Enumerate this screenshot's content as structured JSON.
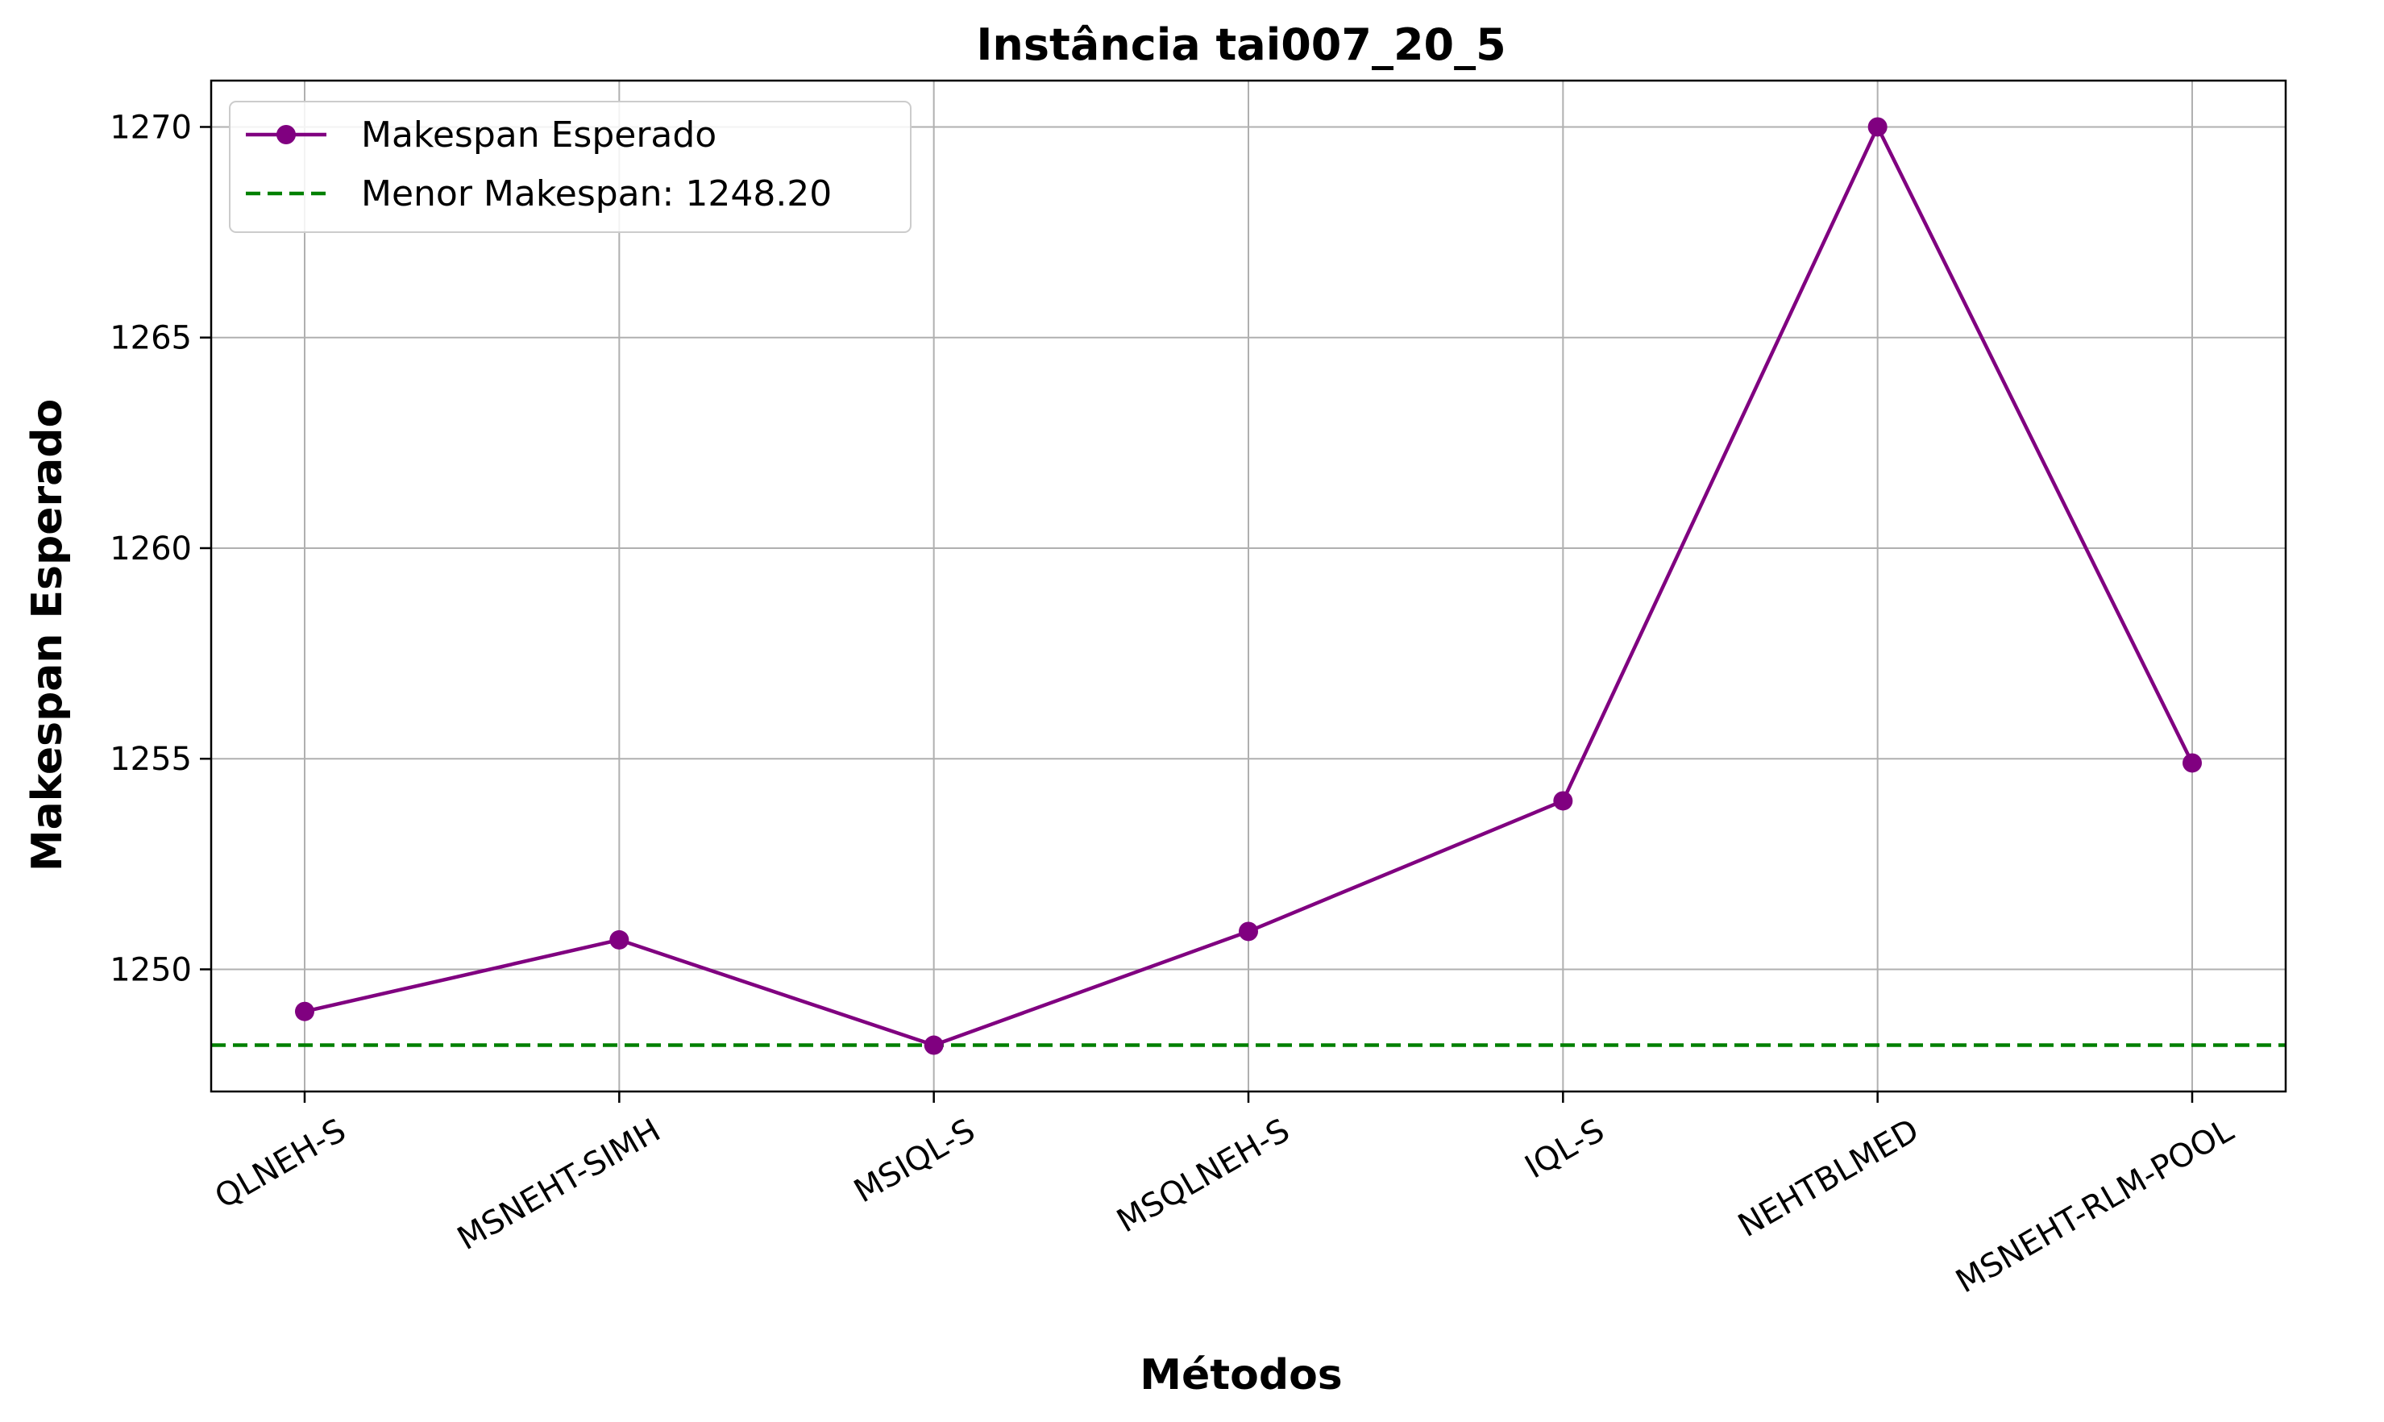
{
  "chart_data": {
    "type": "line",
    "title": "Instância tai007_20_5",
    "xlabel": "Métodos",
    "ylabel": "Makespan Esperado",
    "categories": [
      "QLNEH-S",
      "MSNEHT-SIMH",
      "MSIQL-S",
      "MSQLNEH-S",
      "IQL-S",
      "NEHTBLMED",
      "MSNEHT-RLM-POOL"
    ],
    "series": [
      {
        "name": "Makespan Esperado",
        "values": [
          1249.0,
          1250.7,
          1248.2,
          1250.9,
          1254.0,
          1270.0,
          1254.9
        ],
        "color": "#800080",
        "marker": "circle"
      }
    ],
    "reference_line": {
      "label": "Menor Makespan: 1248.20",
      "value": 1248.2,
      "color": "#008000",
      "style": "dashed"
    },
    "ylim": [
      1247.1,
      1271.1
    ],
    "yticks": [
      1250,
      1255,
      1260,
      1265,
      1270
    ],
    "grid": true,
    "legend_position": "top-left",
    "xtick_rotation": -30
  }
}
